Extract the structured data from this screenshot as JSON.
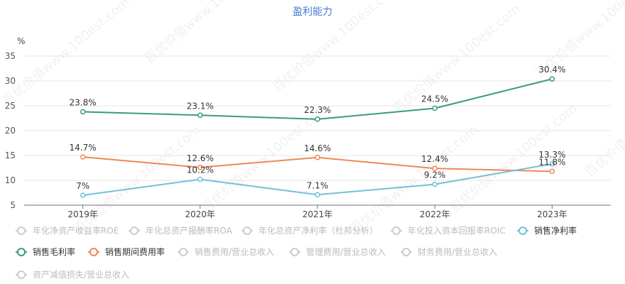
{
  "chart_data": {
    "type": "line",
    "title": "盈利能力",
    "y_unit": "%",
    "categories": [
      "2019年",
      "2020年",
      "2021年",
      "2022年",
      "2023年"
    ],
    "ylim": [
      5,
      35
    ],
    "yticks": [
      5,
      10,
      15,
      20,
      25,
      30,
      35
    ],
    "grid": true,
    "legend_position": "bottom",
    "series": [
      {
        "name": "销售毛利率",
        "color": "#3a9e6f",
        "values": [
          23.8,
          23.1,
          22.3,
          24.5,
          30.4
        ],
        "labels": [
          "23.8%",
          "23.1%",
          "22.3%",
          "24.5%",
          "30.4%"
        ],
        "visible": true
      },
      {
        "name": "销售期间费用率",
        "color": "#ef8756",
        "values": [
          14.7,
          12.6,
          14.6,
          12.4,
          11.8
        ],
        "labels": [
          "14.7%",
          "12.6%",
          "14.6%",
          "12.4%",
          "11.8%"
        ],
        "visible": true
      },
      {
        "name": "销售净利率",
        "color": "#73bfd8",
        "values": [
          7.0,
          10.2,
          7.1,
          9.2,
          13.3
        ],
        "labels": [
          "7%",
          "10.2%",
          "7.1%",
          "9.2%",
          "13.3%"
        ],
        "visible": true
      }
    ],
    "legend": [
      {
        "name": "年化净资产收益率ROE",
        "color": "#cccccc",
        "active": false
      },
      {
        "name": "年化总资产报酬率ROA",
        "color": "#cccccc",
        "active": false
      },
      {
        "name": "年化总资产净利率（杜邦分析）",
        "color": "#cccccc",
        "active": false
      },
      {
        "name": "年化投入资本回报率ROIC",
        "color": "#cccccc",
        "active": false
      },
      {
        "name": "销售净利率",
        "color": "#73bfd8",
        "active": true
      },
      {
        "name": "销售毛利率",
        "color": "#3a9e6f",
        "active": true
      },
      {
        "name": "销售期间费用率",
        "color": "#ef8756",
        "active": true
      },
      {
        "name": "销售费用/营业总收入",
        "color": "#cccccc",
        "active": false
      },
      {
        "name": "管理费用/营业总收入",
        "color": "#cccccc",
        "active": false
      },
      {
        "name": "财务费用/营业总收入",
        "color": "#cccccc",
        "active": false
      },
      {
        "name": "资产减值损失/营业总收入",
        "color": "#cccccc",
        "active": false
      }
    ],
    "watermark": "百优价值www.100est.com"
  }
}
